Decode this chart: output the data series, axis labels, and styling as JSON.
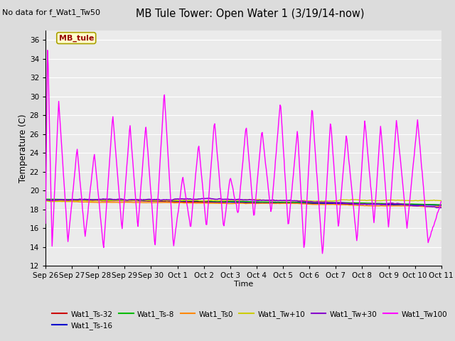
{
  "title": "MB Tule Tower: Open Water 1 (3/19/14-now)",
  "subtitle": "No data for f_Wat1_Tw50",
  "xlabel": "Time",
  "ylabel": "Temperature (C)",
  "ylim": [
    12,
    37
  ],
  "yticks": [
    12,
    14,
    16,
    18,
    20,
    22,
    24,
    26,
    28,
    30,
    32,
    34,
    36
  ],
  "bg_color": "#dcdcdc",
  "plot_bg_color": "#ebebeb",
  "legend_entries": [
    {
      "label": "Wat1_Ts-32",
      "color": "#cc0000"
    },
    {
      "label": "Wat1_Ts-16",
      "color": "#0000cc"
    },
    {
      "label": "Wat1_Ts-8",
      "color": "#00bb00"
    },
    {
      "label": "Wat1_Ts0",
      "color": "#ff8800"
    },
    {
      "label": "Wat1_Tw+10",
      "color": "#cccc00"
    },
    {
      "label": "Wat1_Tw+30",
      "color": "#8800cc"
    },
    {
      "label": "Wat1_Tw100",
      "color": "#ff00ff"
    }
  ],
  "x_tick_labels": [
    "Sep 26",
    "Sep 27",
    "Sep 28",
    "Sep 29",
    "Sep 30",
    "Oct 1",
    "Oct 2",
    "Oct 3",
    "Oct 4",
    "Oct 5",
    "Oct 6",
    "Oct 7",
    "Oct 8",
    "Oct 9",
    "Oct 10",
    "Oct 11"
  ],
  "n_points": 600,
  "annotation_text": "MB_tule"
}
